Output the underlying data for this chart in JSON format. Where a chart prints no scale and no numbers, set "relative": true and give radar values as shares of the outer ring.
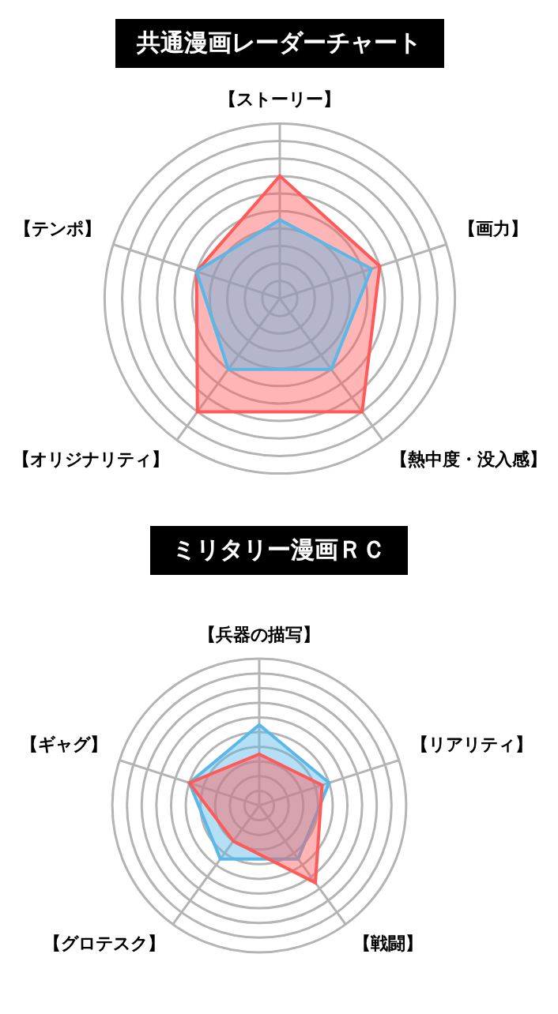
{
  "chart_data": [
    {
      "type": "radar",
      "title": "共通漫画レーダーチャート",
      "categories": [
        "【ストーリー】",
        "【画力】",
        "【熱中度・没入感】",
        "【オリジナリティ】",
        "【テンポ】"
      ],
      "relative": true,
      "grid": true,
      "legend": false,
      "marker": "none",
      "series": [
        {
          "color": "#ff5a5a",
          "values": [
            0.7,
            0.6,
            0.8,
            0.8,
            0.5
          ]
        },
        {
          "color": "#5ab8e8",
          "values": [
            0.45,
            0.55,
            0.5,
            0.5,
            0.5
          ]
        }
      ]
    },
    {
      "type": "radar",
      "title": "ミリタリー漫画ＲＣ",
      "categories": [
        "【兵器の描写】",
        "【リアリティ】",
        "【戦闘】",
        "【グロテスク】",
        "【ギャグ】"
      ],
      "relative": true,
      "grid": true,
      "legend": false,
      "marker": "none",
      "series": [
        {
          "color": "#5ab8e8",
          "values": [
            0.55,
            0.5,
            0.45,
            0.45,
            0.5
          ]
        },
        {
          "color": "#ff5a5a",
          "values": [
            0.35,
            0.45,
            0.65,
            0.3,
            0.5
          ]
        }
      ]
    }
  ]
}
